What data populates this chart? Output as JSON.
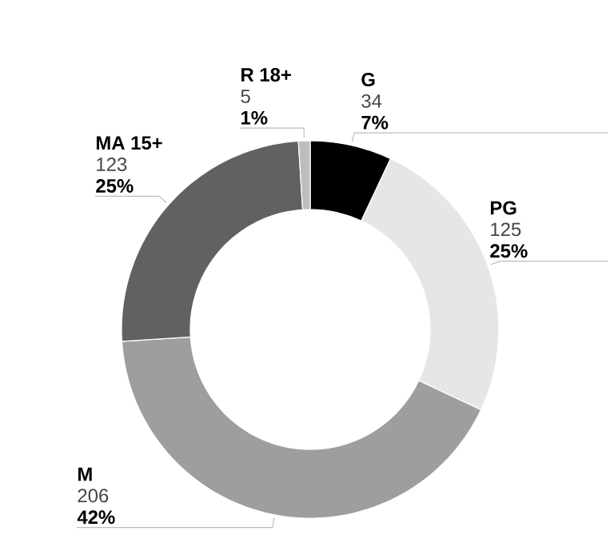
{
  "chart_data": {
    "type": "donut",
    "categories": [
      "G",
      "PG",
      "M",
      "MA 15+",
      "R 18+"
    ],
    "values": [
      7,
      25,
      42,
      25,
      1
    ],
    "colors": [
      "#000000",
      "#e6e6e6",
      "#9e9e9e",
      "#616161",
      "#bdbdbd"
    ],
    "value_labels": [
      "7%",
      "25%",
      "42%",
      "25%",
      "1%"
    ],
    "annotations": [
      "34",
      "125",
      "206",
      "123",
      "5"
    ]
  }
}
